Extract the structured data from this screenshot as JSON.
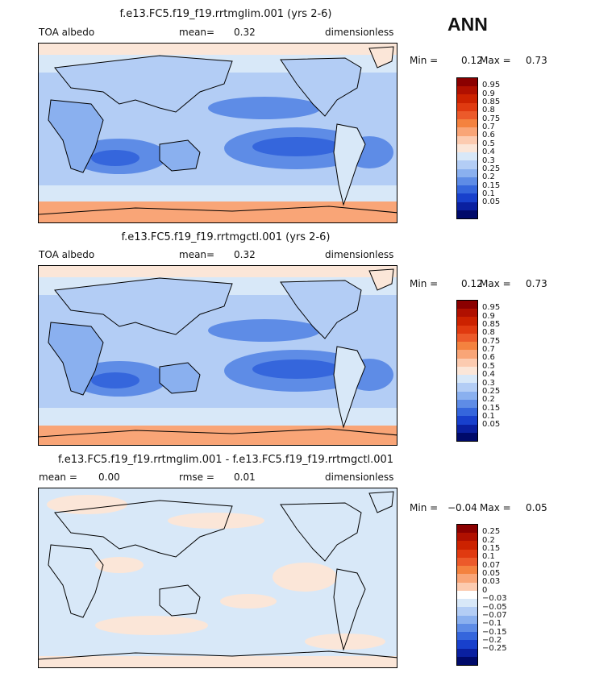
{
  "season": "ANN",
  "panels": [
    {
      "id": "test",
      "title": "f.e13.FC5.f19_f19.rrtmglim.001 (yrs 2-6)",
      "left_label": "TOA albedo",
      "center_label": "mean=",
      "center_value": "0.32",
      "right_label": "dimensionless",
      "min_label": "Min =",
      "min_value": "0.12",
      "max_label": "Max =",
      "max_value": "0.73",
      "levels": [
        "0.95",
        "0.9",
        "0.85",
        "0.8",
        "0.75",
        "0.7",
        "0.6",
        "0.5",
        "0.4",
        "0.3",
        "0.25",
        "0.2",
        "0.15",
        "0.1",
        "0.05"
      ],
      "colors": [
        "#8b0000",
        "#b01000",
        "#cc2200",
        "#e03a10",
        "#ec5a2a",
        "#f4823f",
        "#f9a577",
        "#fccbb0",
        "#fbe6d8",
        "#d8e8f8",
        "#b3cdf5",
        "#8ab0ef",
        "#5e8ce6",
        "#3566dc",
        "#1840cc",
        "#0a20a0",
        "#000a6a"
      ]
    },
    {
      "id": "control",
      "title": "f.e13.FC5.f19_f19.rrtmgctl.001 (yrs 2-6)",
      "left_label": "TOA albedo",
      "center_label": "mean=",
      "center_value": "0.32",
      "right_label": "dimensionless",
      "min_label": "Min =",
      "min_value": "0.12",
      "max_label": "Max =",
      "max_value": "0.73",
      "levels": [
        "0.95",
        "0.9",
        "0.85",
        "0.8",
        "0.75",
        "0.7",
        "0.6",
        "0.5",
        "0.4",
        "0.3",
        "0.25",
        "0.2",
        "0.15",
        "0.1",
        "0.05"
      ],
      "colors": [
        "#8b0000",
        "#b01000",
        "#cc2200",
        "#e03a10",
        "#ec5a2a",
        "#f4823f",
        "#f9a577",
        "#fccbb0",
        "#fbe6d8",
        "#d8e8f8",
        "#b3cdf5",
        "#8ab0ef",
        "#5e8ce6",
        "#3566dc",
        "#1840cc",
        "#0a20a0",
        "#000a6a"
      ]
    },
    {
      "id": "diff",
      "title": "f.e13.FC5.f19_f19.rrtmglim.001 - f.e13.FC5.f19_f19.rrtmgctl.001",
      "left_label": "mean =",
      "left_value": "0.00",
      "center_label": "rmse =",
      "center_value": "0.01",
      "right_label": "dimensionless",
      "min_label": "Min =",
      "min_value": "−0.04",
      "max_label": "Max =",
      "max_value": "0.05",
      "levels": [
        "0.25",
        "0.2",
        "0.15",
        "0.1",
        "0.07",
        "0.05",
        "0.03",
        "0",
        "−0.03",
        "−0.05",
        "−0.07",
        "−0.1",
        "−0.15",
        "−0.2",
        "−0.25"
      ],
      "colors": [
        "#8b0000",
        "#b01000",
        "#cc2200",
        "#e03a10",
        "#ec5a2a",
        "#f4823f",
        "#f9a577",
        "#fccbb0",
        "#ffffff",
        "#d8e8f8",
        "#b3cdf5",
        "#8ab0ef",
        "#5e8ce6",
        "#3566dc",
        "#1840cc",
        "#0a20a0",
        "#000a6a"
      ]
    }
  ],
  "chart_data": [
    {
      "type": "heatmap",
      "title": "f.e13.FC5.f19_f19.rrtmglim.001 (yrs 2-6)",
      "field": "TOA albedo",
      "units": "dimensionless",
      "mean": 0.32,
      "min": 0.12,
      "max": 0.73,
      "contour_levels": [
        0.05,
        0.1,
        0.15,
        0.2,
        0.25,
        0.3,
        0.4,
        0.5,
        0.6,
        0.7,
        0.75,
        0.8,
        0.85,
        0.9,
        0.95
      ]
    },
    {
      "type": "heatmap",
      "title": "f.e13.FC5.f19_f19.rrtmgctl.001 (yrs 2-6)",
      "field": "TOA albedo",
      "units": "dimensionless",
      "mean": 0.32,
      "min": 0.12,
      "max": 0.73,
      "contour_levels": [
        0.05,
        0.1,
        0.15,
        0.2,
        0.25,
        0.3,
        0.4,
        0.5,
        0.6,
        0.7,
        0.75,
        0.8,
        0.85,
        0.9,
        0.95
      ]
    },
    {
      "type": "heatmap",
      "title": "f.e13.FC5.f19_f19.rrtmglim.001 - f.e13.FC5.f19_f19.rrtmgctl.001",
      "units": "dimensionless",
      "mean": 0.0,
      "rmse": 0.01,
      "min": -0.04,
      "max": 0.05,
      "contour_levels": [
        -0.25,
        -0.2,
        -0.15,
        -0.1,
        -0.07,
        -0.05,
        -0.03,
        0,
        0.03,
        0.05,
        0.07,
        0.1,
        0.15,
        0.2,
        0.25
      ]
    }
  ]
}
